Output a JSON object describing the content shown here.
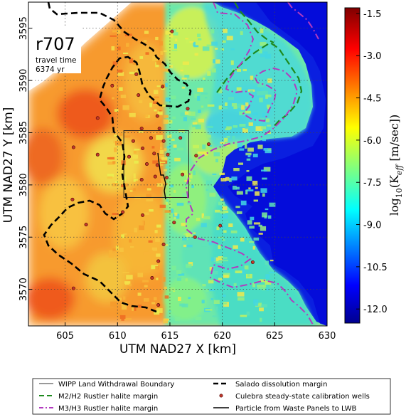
{
  "chart_data": {
    "type": "heatmap",
    "title": "",
    "xlabel": "UTM NAD27 X [km]",
    "ylabel": "UTM NAD27 Y [km]",
    "xlim": [
      601.5,
      630
    ],
    "ylim": [
      3566.5,
      3597.5
    ],
    "x_ticks": [
      605,
      610,
      615,
      620,
      625,
      630
    ],
    "y_ticks": [
      3570,
      3575,
      3580,
      3585,
      3590,
      3595
    ],
    "grid": true,
    "annotation": {
      "realization": "r707",
      "line1": "travel time",
      "line2": "6374 yr"
    },
    "colorbar": {
      "label": "log10(K_eff [m/sec])",
      "label_main": "log",
      "label_sub": "10",
      "label_rest": "(K",
      "label_sub2": "eff",
      "label_end": " [m/sec])",
      "ticks": [
        "-1.5",
        "-3.0",
        "-4.5",
        "-6.0",
        "-7.5",
        "-9.0",
        "-10.5",
        "-12.0"
      ],
      "tick_values": [
        -1.5,
        -3.0,
        -4.5,
        -6.0,
        -7.5,
        -9.0,
        -10.5,
        -12.0
      ],
      "vmin": -12.5,
      "vmax": -1.3,
      "colormap": "jet"
    },
    "wipp_boundary": {
      "x0": 610.6,
      "x1": 616.8,
      "y0": 3578.8,
      "y1": 3585.2
    },
    "wells": [
      [
        615.2,
        3594.7
      ],
      [
        609.5,
        3589.5
      ],
      [
        612.0,
        3588.6
      ],
      [
        613.8,
        3586.6
      ],
      [
        608.1,
        3586.4
      ],
      [
        616.7,
        3587.3
      ],
      [
        614.3,
        3589.4
      ],
      [
        612.3,
        3585.4
      ],
      [
        614.0,
        3585.4
      ],
      [
        611.5,
        3584.2
      ],
      [
        613.2,
        3584.5
      ],
      [
        614.4,
        3584.2
      ],
      [
        616.0,
        3584.5
      ],
      [
        612.4,
        3583.5
      ],
      [
        613.5,
        3583.0
      ],
      [
        614.8,
        3582.9
      ],
      [
        611.1,
        3582.7
      ],
      [
        612.8,
        3582.0
      ],
      [
        613.8,
        3581.9
      ],
      [
        614.7,
        3580.7
      ],
      [
        613.6,
        3580.8
      ],
      [
        612.3,
        3580.5
      ],
      [
        608.1,
        3582.9
      ],
      [
        605.8,
        3583.6
      ],
      [
        617.5,
        3582.8
      ],
      [
        618.7,
        3583.9
      ],
      [
        616.2,
        3581.0
      ],
      [
        605.7,
        3578.6
      ],
      [
        610.5,
        3577.4
      ],
      [
        612.4,
        3577.1
      ],
      [
        615.4,
        3576.4
      ],
      [
        617.4,
        3575.0
      ],
      [
        619.8,
        3576.1
      ],
      [
        614.4,
        3574.3
      ],
      [
        613.9,
        3572.7
      ],
      [
        613.3,
        3571.1
      ],
      [
        613.9,
        3568.5
      ],
      [
        605.8,
        3570.1
      ],
      [
        607.0,
        3576.2
      ],
      [
        622.9,
        3572.6
      ],
      [
        611.8,
        3590.6
      ]
    ]
  },
  "legend": {
    "items": [
      {
        "label": "WIPP Land Withdrawal Boundary",
        "style": "solid-thin",
        "color": "#333333"
      },
      {
        "label": "Salado dissolution margin",
        "style": "dashed-thick",
        "color": "#000000"
      },
      {
        "label": "M2/H2 Rustler halite margin",
        "style": "dashed",
        "color": "#1e8a1e"
      },
      {
        "label": "Culebra steady-state calibration wells",
        "style": "marker",
        "color": "#c0392b"
      },
      {
        "label": "M3/H3 Rustler halite margin",
        "style": "dashdot",
        "color": "#b23bbf"
      },
      {
        "label": "Particle from Waste Panels to LWB",
        "style": "solid",
        "color": "#000000"
      }
    ]
  }
}
